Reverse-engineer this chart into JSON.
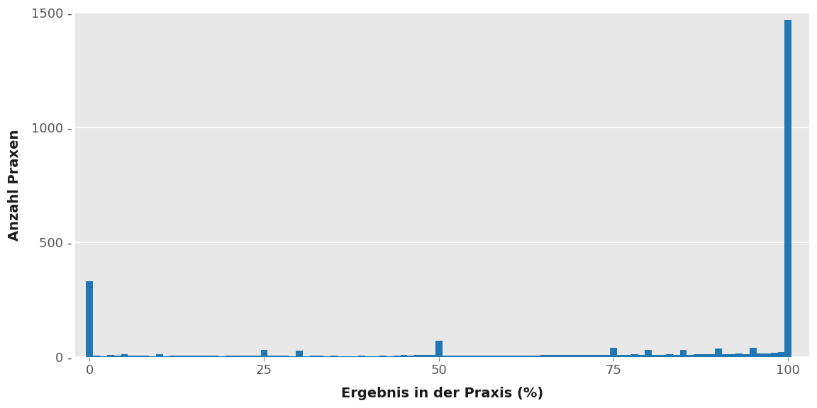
{
  "xlabel": "Ergebnis in der Praxis (%)",
  "ylabel": "Anzahl Praxen",
  "bar_color": "#2077b4",
  "panel_color": "#e8e8e8",
  "figure_color": "#ffffff",
  "grid_color": "#ffffff",
  "ylim": [
    0,
    1500
  ],
  "yticks": [
    0,
    500,
    1000,
    1500
  ],
  "xticks": [
    0,
    25,
    50,
    75,
    100
  ],
  "xlabel_fontsize": 14,
  "ylabel_fontsize": 14,
  "tick_fontsize": 13,
  "tick_label_color": "#555555",
  "axis_label_color": "#1a1a1a",
  "bins_data": {
    "0": 330,
    "1": 5,
    "2": 3,
    "3": 8,
    "4": 5,
    "5": 10,
    "6": 4,
    "7": 6,
    "8": 5,
    "9": 3,
    "10": 10,
    "11": 3,
    "12": 5,
    "13": 5,
    "14": 4,
    "15": 4,
    "16": 5,
    "17": 4,
    "18": 5,
    "19": 3,
    "20": 5,
    "21": 4,
    "22": 5,
    "23": 5,
    "24": 5,
    "25": 30,
    "26": 5,
    "27": 4,
    "28": 5,
    "29": 3,
    "30": 25,
    "31": 3,
    "32": 4,
    "33": 5,
    "34": 3,
    "35": 4,
    "36": 3,
    "37": 3,
    "38": 3,
    "39": 4,
    "40": 3,
    "41": 3,
    "42": 4,
    "43": 3,
    "44": 5,
    "45": 8,
    "46": 5,
    "47": 7,
    "48": 8,
    "49": 7,
    "50": 70,
    "51": 5,
    "52": 4,
    "53": 5,
    "54": 4,
    "55": 5,
    "56": 5,
    "57": 5,
    "58": 5,
    "59": 5,
    "60": 5,
    "61": 4,
    "62": 5,
    "63": 5,
    "64": 5,
    "65": 8,
    "66": 7,
    "67": 7,
    "68": 7,
    "69": 8,
    "70": 8,
    "71": 7,
    "72": 8,
    "73": 8,
    "74": 8,
    "75": 40,
    "76": 7,
    "77": 8,
    "78": 10,
    "79": 9,
    "80": 30,
    "81": 8,
    "82": 9,
    "83": 10,
    "84": 9,
    "85": 30,
    "86": 9,
    "87": 10,
    "88": 12,
    "89": 11,
    "90": 35,
    "91": 11,
    "92": 12,
    "93": 13,
    "94": 12,
    "95": 40,
    "96": 13,
    "97": 15,
    "98": 18,
    "99": 20,
    "100": 1470
  }
}
